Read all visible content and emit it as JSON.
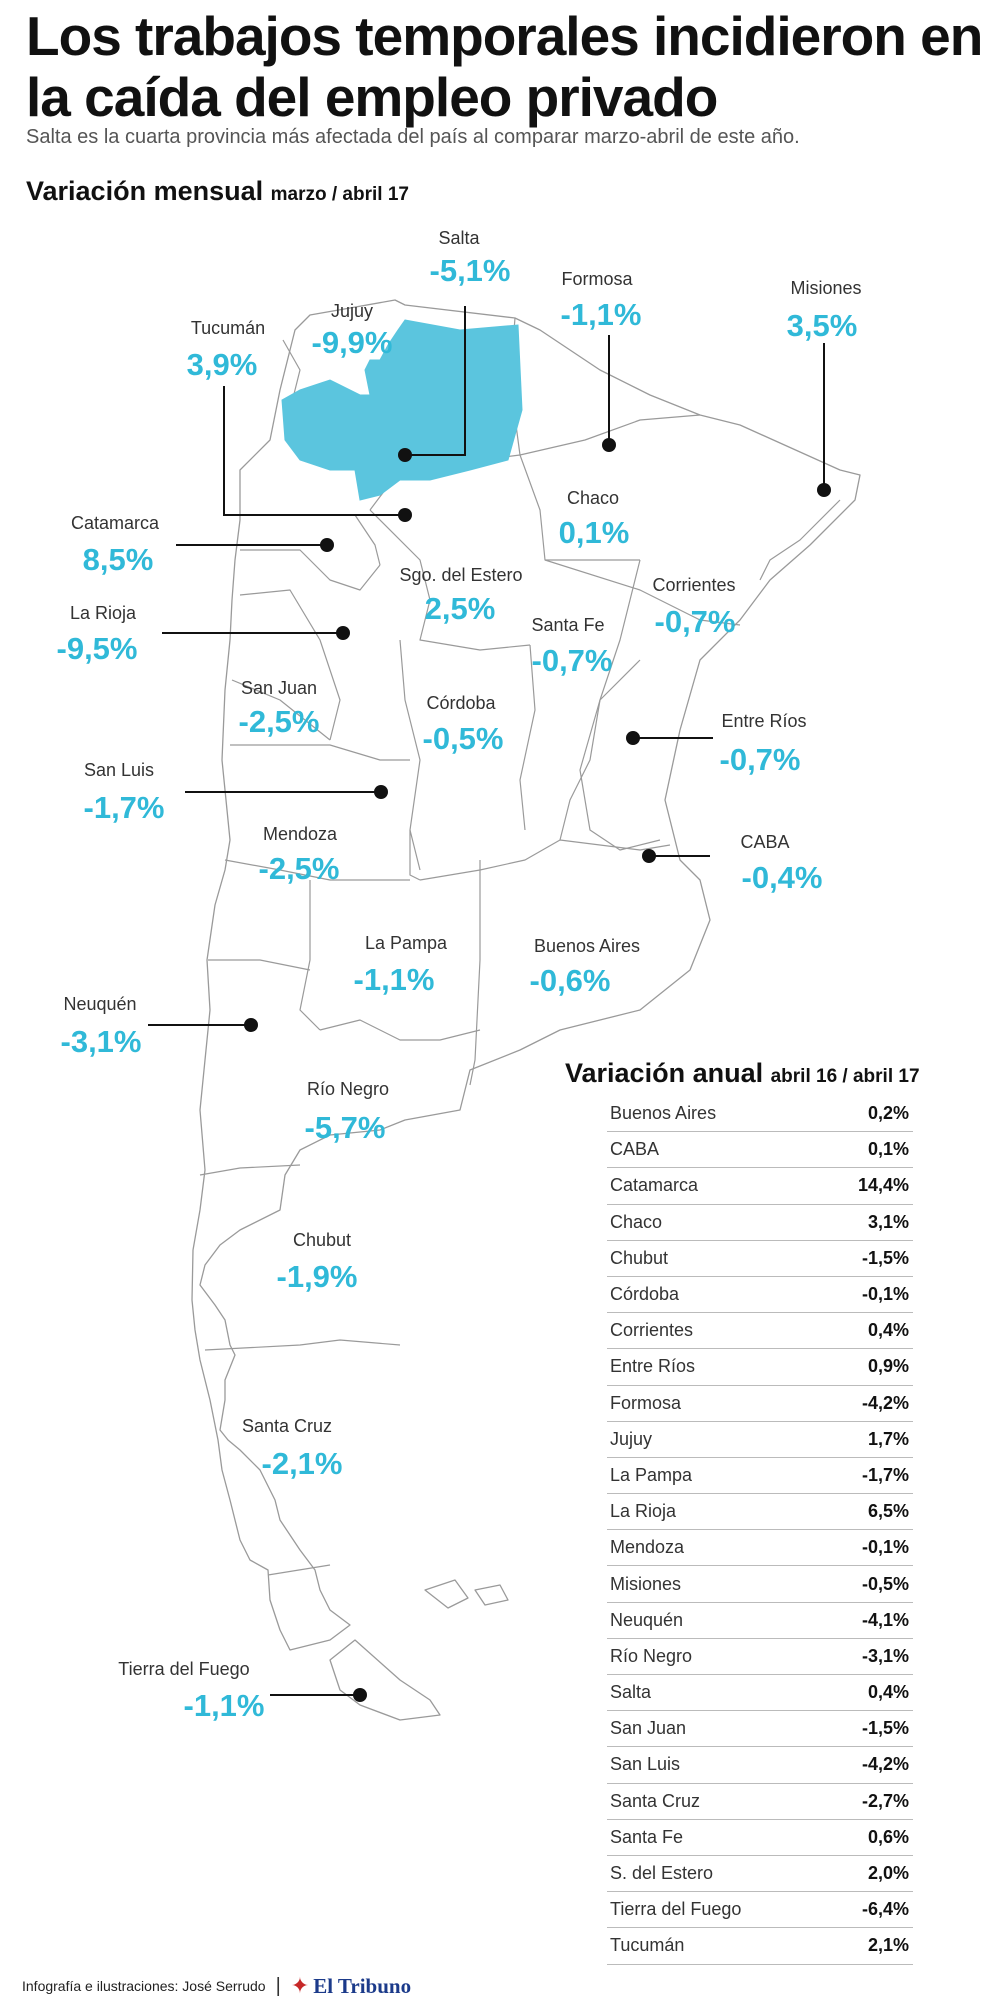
{
  "header": {
    "title": "Los trabajos temporales incidieron en la caída del empleo privado",
    "subtitle": "Salta es la cuarta provincia más afectada del país al comparar marzo-abril de este año."
  },
  "monthly": {
    "heading": "Variación mensual",
    "period": "marzo / abril 17"
  },
  "colors": {
    "accent": "#30b9d8",
    "highlight_fill": "#5bc5de",
    "border": "#9a9a9a",
    "text": "#111111"
  },
  "provinces": [
    {
      "name": "Salta",
      "value": "-5,1%"
    },
    {
      "name": "Jujuy",
      "value": "-9,9%"
    },
    {
      "name": "Formosa",
      "value": "-1,1%"
    },
    {
      "name": "Misiones",
      "value": "3,5%"
    },
    {
      "name": "Tucumán",
      "value": "3,9%"
    },
    {
      "name": "Catamarca",
      "value": "8,5%"
    },
    {
      "name": "Chaco",
      "value": "0,1%"
    },
    {
      "name": "Sgo. del Estero",
      "value": "2,5%"
    },
    {
      "name": "Corrientes",
      "value": "-0,7%"
    },
    {
      "name": "La Rioja",
      "value": "-9,5%"
    },
    {
      "name": "Santa Fe",
      "value": "-0,7%"
    },
    {
      "name": "San Juan",
      "value": "-2,5%"
    },
    {
      "name": "Córdoba",
      "value": "-0,5%"
    },
    {
      "name": "Entre Ríos",
      "value": "-0,7%"
    },
    {
      "name": "San Luis",
      "value": "-1,7%"
    },
    {
      "name": "Mendoza",
      "value": "-2,5%"
    },
    {
      "name": "CABA",
      "value": "-0,4%"
    },
    {
      "name": "La Pampa",
      "value": "-1,1%"
    },
    {
      "name": "Buenos Aires",
      "value": "-0,6%"
    },
    {
      "name": "Neuquén",
      "value": "-3,1%"
    },
    {
      "name": "Río Negro",
      "value": "-5,7%"
    },
    {
      "name": "Chubut",
      "value": "-1,9%"
    },
    {
      "name": "Santa Cruz",
      "value": "-2,1%"
    },
    {
      "name": "Tierra del Fuego",
      "value": "-1,1%"
    }
  ],
  "annual": {
    "heading": "Variación anual",
    "period": "abril 16 / abril 17",
    "rows": [
      {
        "name": "Buenos Aires",
        "value": "0,2%"
      },
      {
        "name": "CABA",
        "value": "0,1%"
      },
      {
        "name": "Catamarca",
        "value": "14,4%"
      },
      {
        "name": "Chaco",
        "value": "3,1%"
      },
      {
        "name": "Chubut",
        "value": "-1,5%"
      },
      {
        "name": "Córdoba",
        "value": "-0,1%"
      },
      {
        "name": "Corrientes",
        "value": "0,4%"
      },
      {
        "name": "Entre Ríos",
        "value": "0,9%"
      },
      {
        "name": "Formosa",
        "value": "-4,2%"
      },
      {
        "name": "Jujuy",
        "value": "1,7%"
      },
      {
        "name": "La Pampa",
        "value": "-1,7%"
      },
      {
        "name": "La Rioja",
        "value": "6,5%"
      },
      {
        "name": "Mendoza",
        "value": "-0,1%"
      },
      {
        "name": "Misiones",
        "value": "-0,5%"
      },
      {
        "name": "Neuquén",
        "value": "-4,1%"
      },
      {
        "name": "Río Negro",
        "value": "-3,1%"
      },
      {
        "name": "Salta",
        "value": "0,4%"
      },
      {
        "name": "San Juan",
        "value": "-1,5%"
      },
      {
        "name": "San Luis",
        "value": "-4,2%"
      },
      {
        "name": "Santa Cruz",
        "value": "-2,7%"
      },
      {
        "name": "Santa Fe",
        "value": "0,6%"
      },
      {
        "name": "S. del Estero",
        "value": "2,0%"
      },
      {
        "name": "Tierra del Fuego",
        "value": "-6,4%"
      },
      {
        "name": "Tucumán",
        "value": "2,1%"
      }
    ]
  },
  "footer": {
    "credit": "Infografía e ilustraciones: José Serrudo",
    "separator": "|",
    "logo_icon": "runner-logo-icon",
    "logo_text": "El Tribuno"
  }
}
